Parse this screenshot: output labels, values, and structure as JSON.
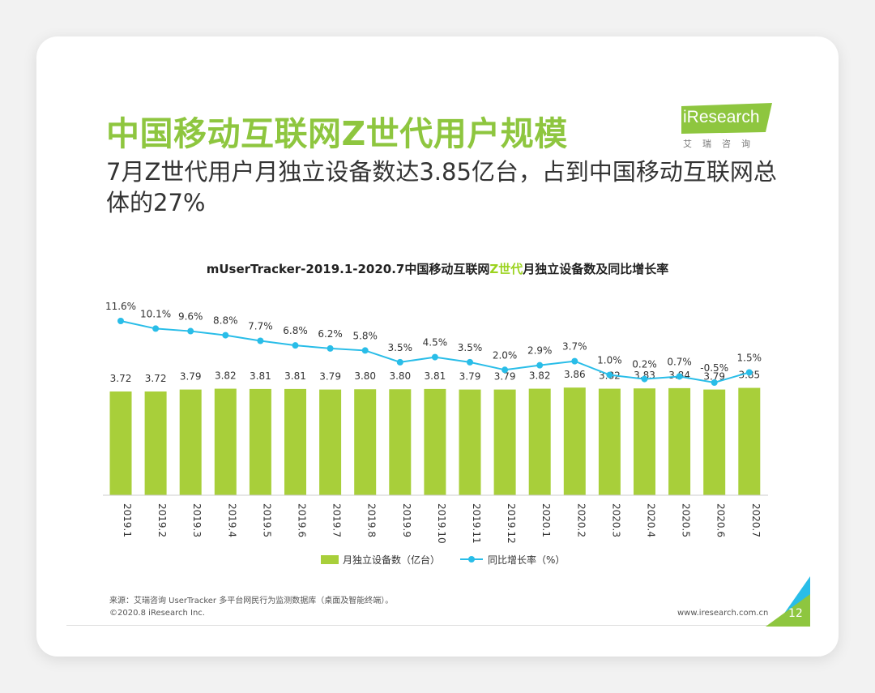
{
  "header": {
    "title": "中国移动互联网Z世代用户规模",
    "subtitle": "7月Z世代用户月独立设备数达3.85亿台，占到中国移动互联网总体的27%"
  },
  "logo": {
    "text": "iResearch",
    "cn": "艾瑞咨询"
  },
  "colors": {
    "bar": "#a8cf3a",
    "line": "#29bde8",
    "title_green": "#8ec63f",
    "highlight": "#9bd31f"
  },
  "chart_data": {
    "type": "bar",
    "title_parts": [
      "mUserTracker-2019.1-2020.7中国移动互联网",
      "Z世代",
      "月独立设备数及同比增长率"
    ],
    "categories": [
      "2019.1",
      "2019.2",
      "2019.3",
      "2019.4",
      "2019.5",
      "2019.6",
      "2019.7",
      "2019.8",
      "2019.9",
      "2019.10",
      "2019.11",
      "2019.12",
      "2020.1",
      "2020.2",
      "2020.3",
      "2020.4",
      "2020.5",
      "2020.6",
      "2020.7"
    ],
    "series": [
      {
        "name": "月独立设备数（亿台）",
        "kind": "bar",
        "values": [
          3.72,
          3.72,
          3.79,
          3.82,
          3.81,
          3.81,
          3.79,
          3.8,
          3.8,
          3.81,
          3.79,
          3.79,
          3.82,
          3.86,
          3.82,
          3.83,
          3.84,
          3.79,
          3.85
        ],
        "labels": [
          "3.72",
          "3.72",
          "3.79",
          "3.82",
          "3.81",
          "3.81",
          "3.79",
          "3.80",
          "3.80",
          "3.81",
          "3.79",
          "3.79",
          "3.82",
          "3.86",
          "3.82",
          "3.83",
          "3.84",
          "3.79",
          "3.85"
        ]
      },
      {
        "name": "同比增长率（%）",
        "kind": "line",
        "values": [
          11.6,
          10.1,
          9.6,
          8.8,
          7.7,
          6.8,
          6.2,
          5.8,
          3.5,
          4.5,
          3.5,
          2.0,
          2.9,
          3.7,
          1.0,
          0.2,
          0.7,
          -0.5,
          1.5
        ],
        "labels": [
          "11.6%",
          "10.1%",
          "9.6%",
          "8.8%",
          "7.7%",
          "6.8%",
          "6.2%",
          "5.8%",
          "3.5%",
          "4.5%",
          "3.5%",
          "2.0%",
          "2.9%",
          "3.7%",
          "1.0%",
          "0.2%",
          "0.7%",
          "-0.5%",
          "1.5%"
        ]
      }
    ],
    "legend_position": "bottom",
    "grid": false
  },
  "footer": {
    "source": "来源：艾瑞咨询 UserTracker 多平台网民行为监测数据库（桌面及智能终端）。",
    "copyright": "©2020.8 iResearch Inc.",
    "website": "www.iresearch.com.cn",
    "page": "12"
  }
}
